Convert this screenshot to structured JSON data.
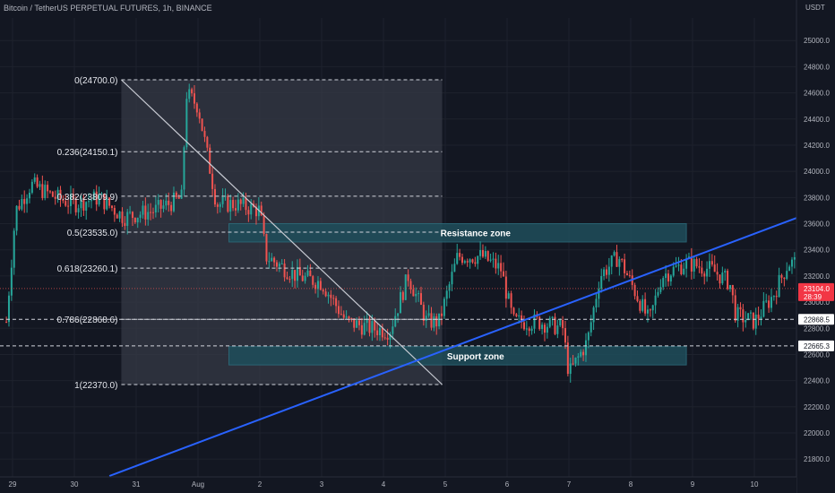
{
  "header": {
    "title": "Bitcoin / TetherUS PERPETUAL FUTURES, 1h, BINANCE",
    "currency": "USDT"
  },
  "colors": {
    "background": "#131722",
    "up": "#26a69a",
    "down": "#ef5350",
    "trendline": "#2962ff",
    "zone": "#1f4e5b",
    "fib_box": "#363a45"
  },
  "chart_data": {
    "type": "candlestick",
    "y_axis": {
      "ticks": [
        "25000.0",
        "24800.0",
        "24600.0",
        "24400.0",
        "24200.0",
        "24000.0",
        "23800.0",
        "23600.0",
        "23400.0",
        "23200.0",
        "23000.0",
        "22800.0",
        "22600.0",
        "22400.0",
        "22200.0",
        "22000.0",
        "21800.0"
      ]
    },
    "x_axis": {
      "ticks": [
        "29",
        "30",
        "31",
        "Aug",
        "2",
        "3",
        "4",
        "5",
        "6",
        "7",
        "8",
        "9",
        "10"
      ]
    },
    "fib_levels": [
      {
        "label": "0(24700.0)",
        "price": 24700.0
      },
      {
        "label": "0.236(24150.1)",
        "price": 24150.1
      },
      {
        "label": "0.382(23809.9)",
        "price": 23809.9
      },
      {
        "label": "0.5(23535.0)",
        "price": 23535.0
      },
      {
        "label": "0.618(23260.1)",
        "price": 23260.1
      },
      {
        "label": "0.786(22868.6)",
        "price": 22868.6
      },
      {
        "label": "1(22370.0)",
        "price": 22370.0
      }
    ],
    "zones": [
      {
        "label": "Resistance zone",
        "top": 23600,
        "bottom": 23460
      },
      {
        "label": "Support zone",
        "top": 22660,
        "bottom": 22520
      }
    ],
    "price_tags": [
      {
        "label": "23104.0",
        "sub": "28:39",
        "price": 23104.0,
        "kind": "current"
      },
      {
        "label": "22868.5",
        "price": 22868.5,
        "kind": "line"
      },
      {
        "label": "22665.3",
        "price": 22665.3,
        "kind": "line"
      }
    ],
    "trendline": {
      "from": {
        "day": 4.9,
        "price": 22370
      },
      "to": {
        "day": 11.7,
        "price": 23600
      }
    },
    "close_series_anchors": [
      {
        "day": -0.1,
        "price": 22850
      },
      {
        "day": 0.05,
        "price": 23700
      },
      {
        "day": 0.3,
        "price": 23900
      },
      {
        "day": 0.7,
        "price": 23800
      },
      {
        "day": 1.0,
        "price": 23750
      },
      {
        "day": 1.4,
        "price": 23800
      },
      {
        "day": 1.8,
        "price": 23650
      },
      {
        "day": 2.3,
        "price": 23700
      },
      {
        "day": 2.75,
        "price": 23800
      },
      {
        "day": 2.8,
        "price": 24600
      },
      {
        "day": 3.0,
        "price": 24500
      },
      {
        "day": 3.3,
        "price": 23750
      },
      {
        "day": 3.6,
        "price": 23750
      },
      {
        "day": 4.0,
        "price": 23700
      },
      {
        "day": 4.1,
        "price": 23350
      },
      {
        "day": 4.6,
        "price": 23200
      },
      {
        "day": 5.0,
        "price": 23150
      },
      {
        "day": 5.4,
        "price": 22850
      },
      {
        "day": 5.8,
        "price": 22800
      },
      {
        "day": 6.1,
        "price": 22780
      },
      {
        "day": 6.4,
        "price": 23200
      },
      {
        "day": 6.7,
        "price": 22850
      },
      {
        "day": 6.9,
        "price": 22850
      },
      {
        "day": 7.2,
        "price": 23350
      },
      {
        "day": 7.6,
        "price": 23350
      },
      {
        "day": 7.9,
        "price": 23250
      },
      {
        "day": 8.1,
        "price": 22850
      },
      {
        "day": 8.5,
        "price": 22850
      },
      {
        "day": 8.9,
        "price": 22800
      },
      {
        "day": 9.0,
        "price": 22450
      },
      {
        "day": 9.3,
        "price": 22700
      },
      {
        "day": 9.5,
        "price": 23200
      },
      {
        "day": 9.8,
        "price": 23350
      },
      {
        "day": 10.1,
        "price": 23050
      },
      {
        "day": 10.3,
        "price": 22850
      },
      {
        "day": 10.5,
        "price": 23200
      },
      {
        "day": 10.9,
        "price": 23300
      },
      {
        "day": 11.3,
        "price": 23250
      },
      {
        "day": 11.6,
        "price": 23150
      },
      {
        "day": 11.7,
        "price": 22900
      },
      {
        "day": 12.0,
        "price": 22850
      },
      {
        "day": 12.3,
        "price": 23050
      },
      {
        "day": 12.55,
        "price": 23300
      },
      {
        "day": 12.7,
        "price": 23300
      },
      {
        "day": 12.8,
        "price": 23104
      }
    ]
  }
}
